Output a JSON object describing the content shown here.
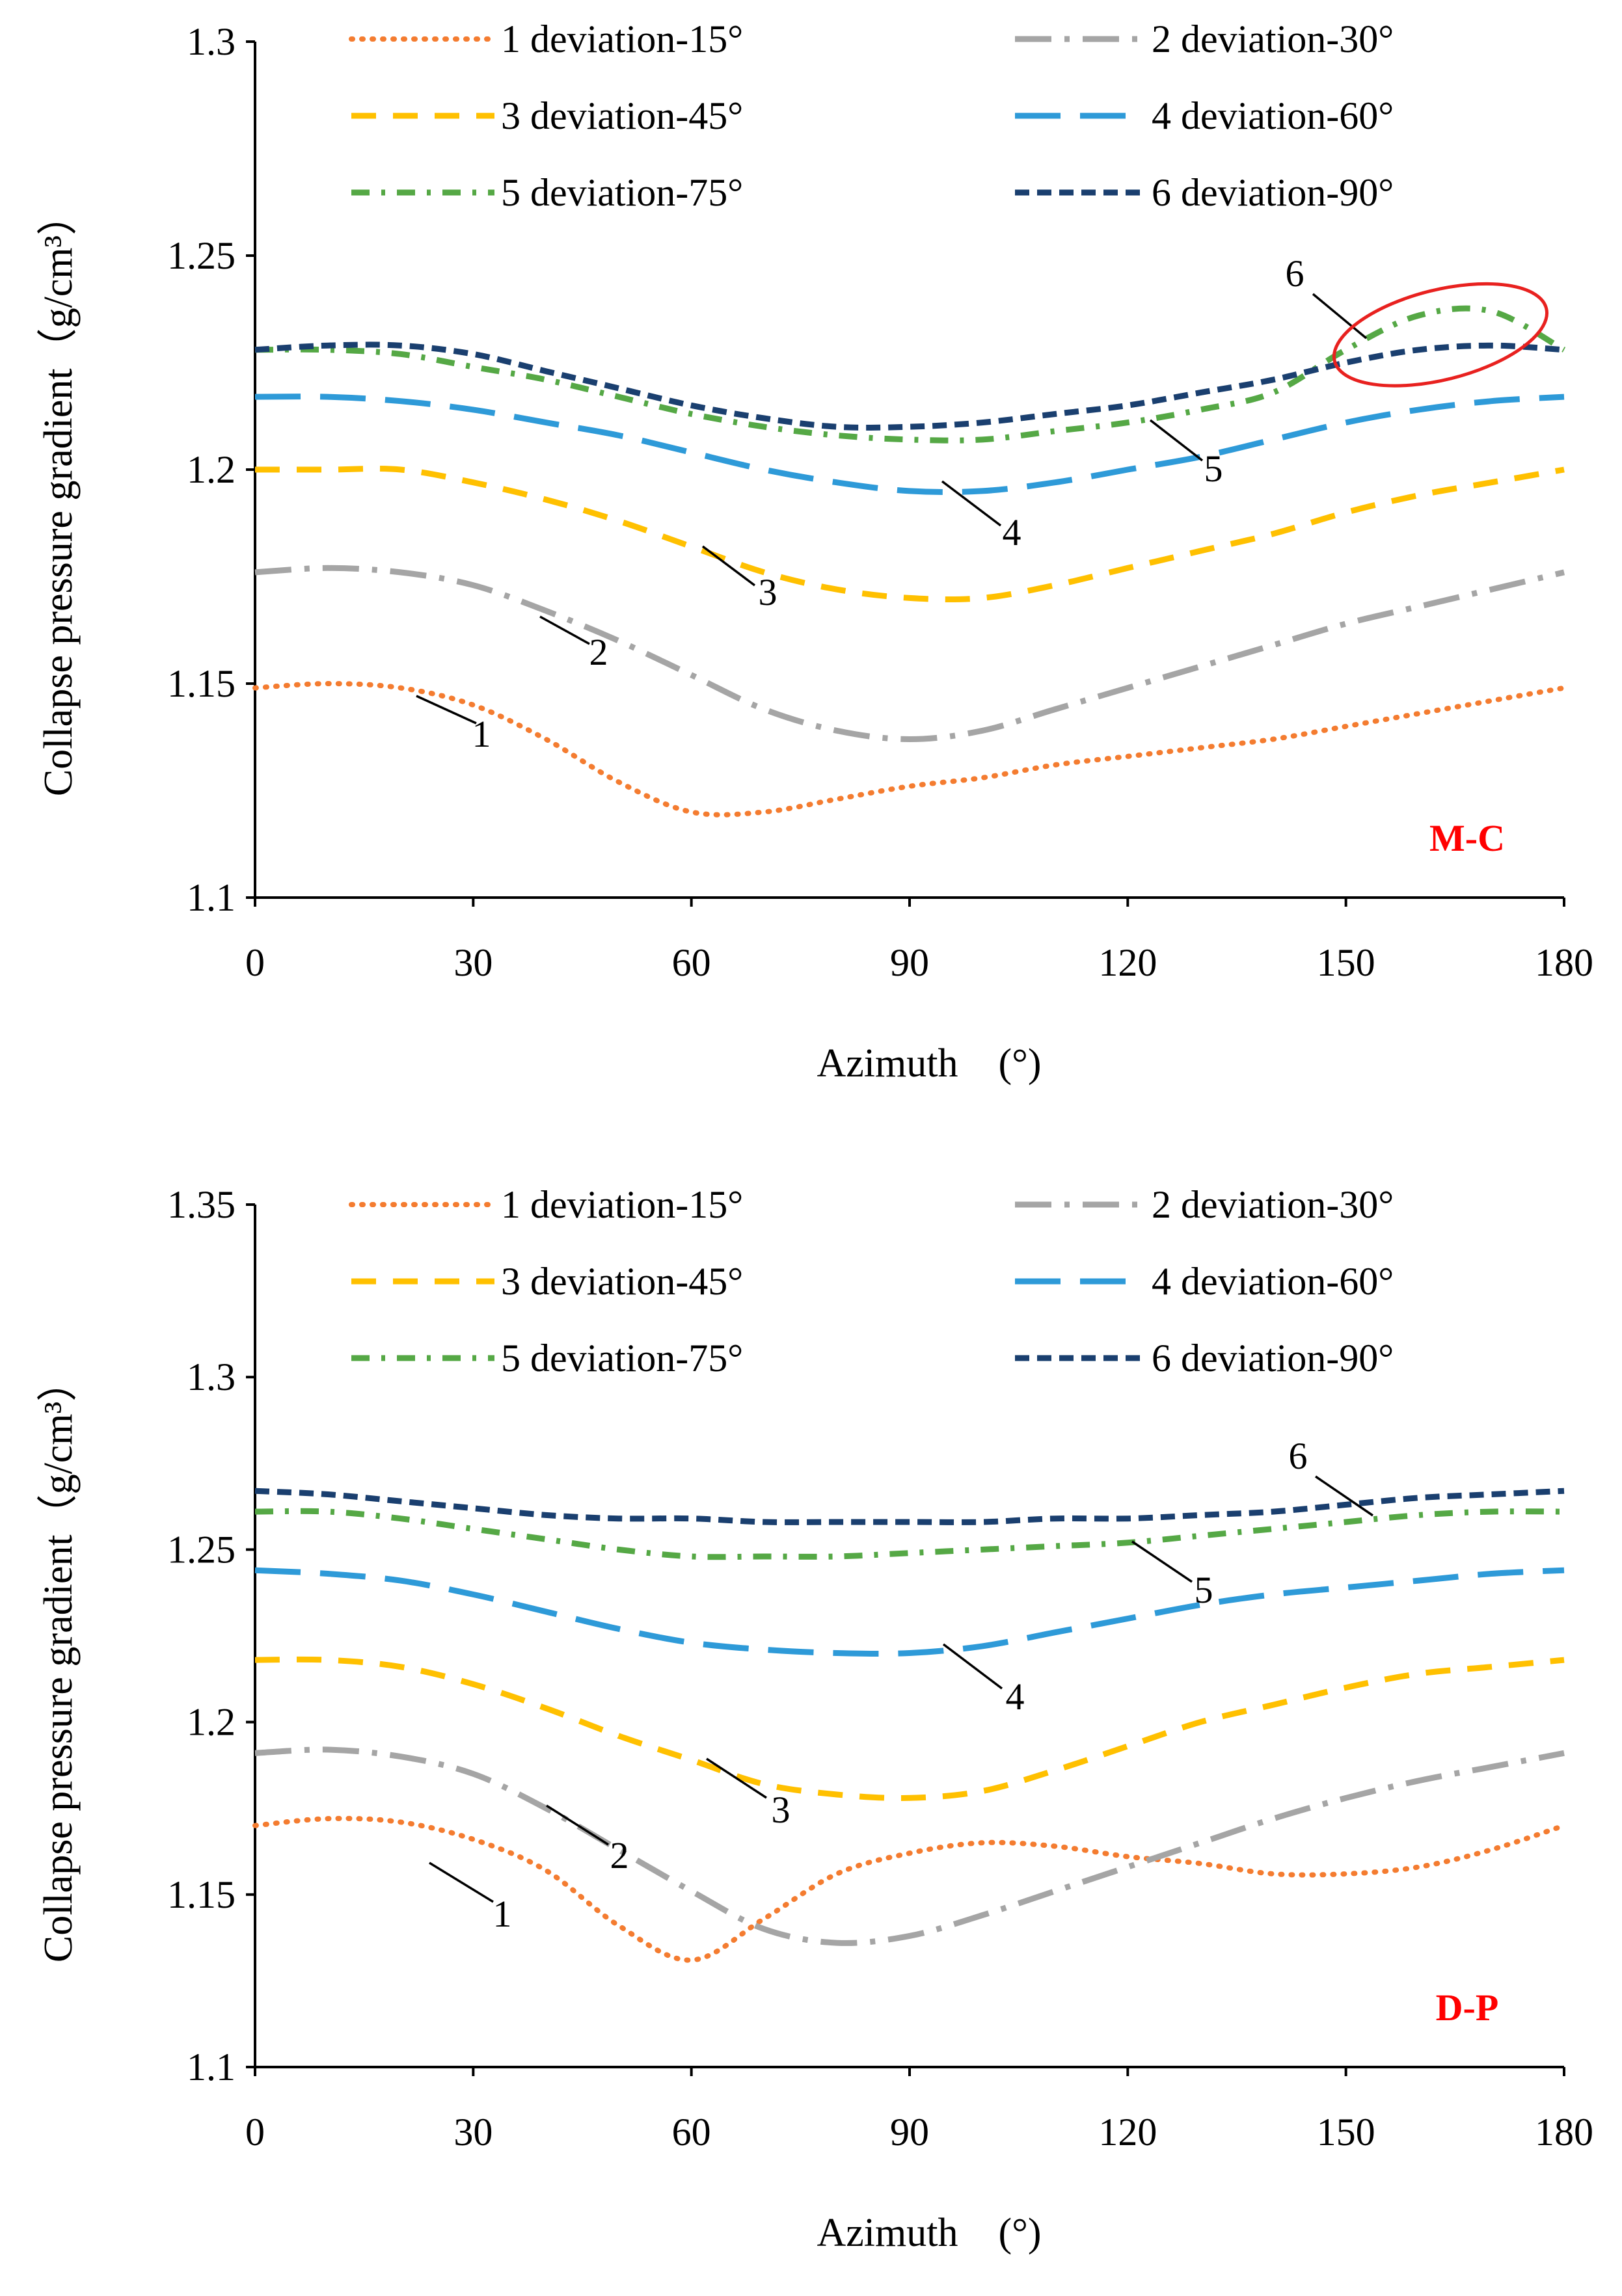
{
  "chart_data": [
    {
      "type": "line",
      "model_label": "M-C",
      "xlabel": "Azimuth　(°)",
      "ylabel": "Collapse pressure gradient（g/cm³）",
      "ylim": [
        1.1,
        1.3
      ],
      "xlim": [
        0,
        180
      ],
      "yticks": [
        "1.1",
        "1.15",
        "1.2",
        "1.25",
        "1.3"
      ],
      "xticks": [
        "0",
        "30",
        "60",
        "90",
        "120",
        "150",
        "180"
      ],
      "legend": [
        "1 deviation-15°",
        "2 deviation-30°",
        "3 deviation-45°",
        "4 deviation-60°",
        "5 deviation-75°",
        "6 deviation-90°"
      ],
      "x": [
        0,
        10,
        20,
        30,
        40,
        50,
        60,
        70,
        80,
        90,
        100,
        110,
        120,
        130,
        140,
        150,
        160,
        170,
        180
      ],
      "series": [
        {
          "name": "1 deviation-15°",
          "label": "1",
          "values": [
            1.149,
            1.15,
            1.149,
            1.145,
            1.137,
            1.127,
            1.12,
            1.12,
            1.123,
            1.126,
            1.128,
            1.131,
            1.133,
            1.135,
            1.137,
            1.14,
            1.143,
            1.146,
            1.149
          ]
        },
        {
          "name": "2 deviation-30°",
          "label": "2",
          "values": [
            1.176,
            1.177,
            1.176,
            1.173,
            1.167,
            1.16,
            1.152,
            1.144,
            1.139,
            1.137,
            1.139,
            1.144,
            1.149,
            1.154,
            1.159,
            1.164,
            1.168,
            1.172,
            1.176
          ]
        },
        {
          "name": "3 deviation-45°",
          "label": "3",
          "values": [
            1.2,
            1.2,
            1.2,
            1.197,
            1.193,
            1.188,
            1.182,
            1.176,
            1.172,
            1.17,
            1.17,
            1.173,
            1.177,
            1.181,
            1.185,
            1.19,
            1.194,
            1.197,
            1.2
          ]
        },
        {
          "name": "4 deviation-60°",
          "label": "4",
          "values": [
            1.217,
            1.217,
            1.216,
            1.214,
            1.211,
            1.208,
            1.204,
            1.2,
            1.197,
            1.195,
            1.195,
            1.197,
            1.2,
            1.203,
            1.207,
            1.211,
            1.214,
            1.216,
            1.217
          ]
        },
        {
          "name": "5 deviation-75°",
          "label": "5",
          "values": [
            1.228,
            1.228,
            1.227,
            1.224,
            1.221,
            1.217,
            1.213,
            1.21,
            1.208,
            1.207,
            1.207,
            1.209,
            1.211,
            1.214,
            1.218,
            1.228,
            1.236,
            1.237,
            1.228
          ]
        },
        {
          "name": "6 deviation-90°",
          "label": "6",
          "values": [
            1.228,
            1.229,
            1.229,
            1.227,
            1.223,
            1.219,
            1.215,
            1.212,
            1.21,
            1.21,
            1.211,
            1.213,
            1.215,
            1.218,
            1.221,
            1.225,
            1.228,
            1.229,
            1.228
          ]
        }
      ],
      "highlight": {
        "x_range": [
          148,
          178
        ],
        "y_range": [
          1.221,
          1.242
        ],
        "color": "#e8211f"
      }
    },
    {
      "type": "line",
      "model_label": "D-P",
      "xlabel": "Azimuth　(°)",
      "ylabel": "Collapse pressure gradient（g/cm³）",
      "ylim": [
        1.1,
        1.35
      ],
      "xlim": [
        0,
        180
      ],
      "yticks": [
        "1.1",
        "1.15",
        "1.2",
        "1.25",
        "1.3",
        "1.35"
      ],
      "xticks": [
        "0",
        "30",
        "60",
        "90",
        "120",
        "150",
        "180"
      ],
      "legend": [
        "1 deviation-15°",
        "2 deviation-30°",
        "3 deviation-45°",
        "4 deviation-60°",
        "5 deviation-75°",
        "6 deviation-90°"
      ],
      "x": [
        0,
        10,
        20,
        30,
        40,
        50,
        60,
        70,
        80,
        90,
        100,
        110,
        120,
        130,
        140,
        150,
        160,
        170,
        180
      ],
      "series": [
        {
          "name": "1 deviation-15°",
          "label": "1",
          "values": [
            1.17,
            1.172,
            1.171,
            1.166,
            1.157,
            1.141,
            1.131,
            1.143,
            1.156,
            1.162,
            1.165,
            1.164,
            1.161,
            1.159,
            1.156,
            1.156,
            1.158,
            1.163,
            1.17
          ]
        },
        {
          "name": "2 deviation-30°",
          "label": "2",
          "values": [
            1.191,
            1.192,
            1.19,
            1.185,
            1.175,
            1.163,
            1.151,
            1.14,
            1.136,
            1.138,
            1.144,
            1.151,
            1.158,
            1.165,
            1.172,
            1.178,
            1.183,
            1.187,
            1.191
          ]
        },
        {
          "name": "3 deviation-45°",
          "label": "3",
          "values": [
            1.218,
            1.218,
            1.216,
            1.211,
            1.204,
            1.196,
            1.189,
            1.182,
            1.179,
            1.178,
            1.18,
            1.186,
            1.193,
            1.2,
            1.205,
            1.21,
            1.214,
            1.216,
            1.218
          ]
        },
        {
          "name": "4 deviation-60°",
          "label": "4",
          "values": [
            1.244,
            1.243,
            1.241,
            1.237,
            1.232,
            1.227,
            1.223,
            1.221,
            1.22,
            1.22,
            1.222,
            1.226,
            1.23,
            1.234,
            1.237,
            1.239,
            1.241,
            1.243,
            1.244
          ]
        },
        {
          "name": "5 deviation-75°",
          "label": "5",
          "values": [
            1.261,
            1.261,
            1.259,
            1.256,
            1.253,
            1.25,
            1.248,
            1.248,
            1.248,
            1.249,
            1.25,
            1.251,
            1.252,
            1.254,
            1.256,
            1.258,
            1.26,
            1.261,
            1.261
          ]
        },
        {
          "name": "6 deviation-90°",
          "label": "6",
          "values": [
            1.267,
            1.266,
            1.264,
            1.262,
            1.26,
            1.259,
            1.259,
            1.258,
            1.258,
            1.258,
            1.258,
            1.259,
            1.259,
            1.26,
            1.261,
            1.263,
            1.265,
            1.266,
            1.267
          ]
        }
      ]
    }
  ],
  "series_styles": [
    {
      "color": "#f47c30",
      "dash": "dotted"
    },
    {
      "color": "#a5a5a5",
      "dash": "dash-dot-long"
    },
    {
      "color": "#ffc000",
      "dash": "dash"
    },
    {
      "color": "#2e9ad8",
      "dash": "long-dash"
    },
    {
      "color": "#55a845",
      "dash": "dash-dot"
    },
    {
      "color": "#1a3f6f",
      "dash": "short-dash"
    }
  ],
  "model_label_color": "#ff0000"
}
